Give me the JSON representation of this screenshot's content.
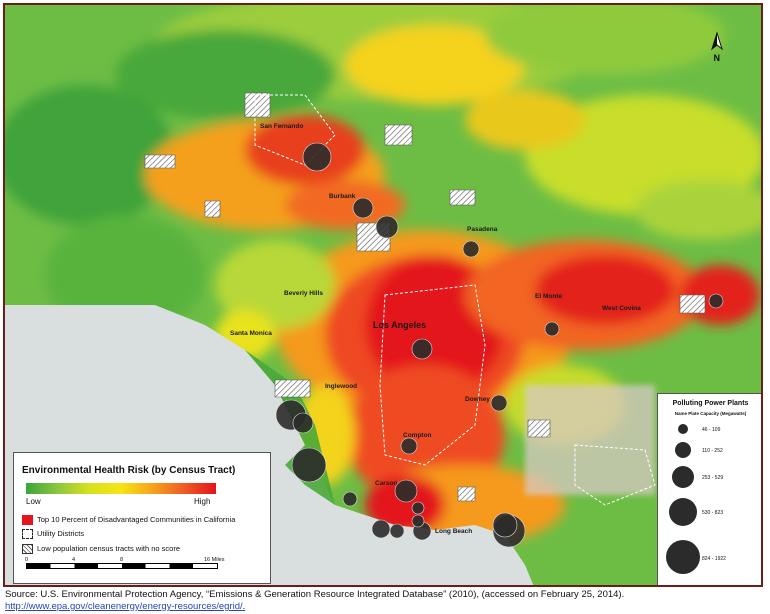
{
  "map": {
    "cities": [
      "San Fernando",
      "Burbank",
      "Pasadena",
      "Beverly Hills",
      "Santa Monica",
      "Los Angeles",
      "El Monte",
      "West Covina",
      "Inglewood",
      "Downey",
      "Compton",
      "Carson",
      "Long Beach"
    ],
    "north_label": "N"
  },
  "legend": {
    "title": "Environmental Health Risk (by Census Tract)",
    "low_label": "Low",
    "high_label": "High",
    "items": [
      {
        "label": "Top 10 Percent of Disadvantaged Communities in California",
        "icon": "red-square"
      },
      {
        "label": "Utility Districts",
        "icon": "dashed-outline"
      },
      {
        "label": "Low population census tracts with no score",
        "icon": "hatched-square"
      }
    ],
    "scale_ticks": [
      "0",
      "4",
      "8",
      "16 Miles"
    ],
    "colors": {
      "low": "#3aa63a",
      "mid": "#f6e416",
      "high": "#e3141b"
    }
  },
  "plants_legend": {
    "title": "Polluting Power Plants",
    "subtitle": "Name Plate Capacity (Megawatts)",
    "classes": [
      "46 - 109",
      "110 - 252",
      "253 - 529",
      "530 - 823",
      "824 - 1922"
    ]
  },
  "source": {
    "text": "Source: U.S. Environmental Protection Agency, “Emissions & Generation Resource Integrated Database” (2010), (accessed on February 25, 2014).",
    "link": "http://www.epa.gov/cleanenergy/energy-resources/egrid/",
    "link_suffix": "."
  }
}
